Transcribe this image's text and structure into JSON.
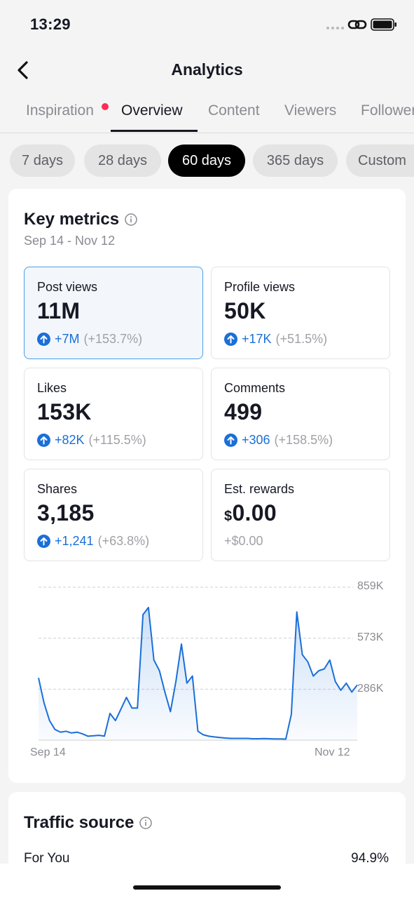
{
  "status_bar": {
    "time": "13:29",
    "icons": [
      "signal-dots-icon",
      "link-icon",
      "battery-icon"
    ]
  },
  "header": {
    "title": "Analytics",
    "back_icon": "chevron-left-icon"
  },
  "tabs": [
    {
      "label": "Inspiration",
      "has_notification_dot": true
    },
    {
      "label": "Overview",
      "active": true
    },
    {
      "label": "Content"
    },
    {
      "label": "Viewers"
    },
    {
      "label": "Followers"
    }
  ],
  "ranges": [
    {
      "label": "7 days"
    },
    {
      "label": "28 days"
    },
    {
      "label": "60 days",
      "active": true
    },
    {
      "label": "365 days"
    },
    {
      "label": "Custom"
    }
  ],
  "key_metrics": {
    "title": "Key metrics",
    "date_range": "Sep 14 - Nov 12",
    "metrics": [
      {
        "label": "Post views",
        "value": "11M",
        "change": "+7M",
        "change_pct": "(+153.7%)",
        "selected": true
      },
      {
        "label": "Profile views",
        "value": "50K",
        "change": "+17K",
        "change_pct": "(+51.5%)"
      },
      {
        "label": "Likes",
        "value": "153K",
        "change": "+82K",
        "change_pct": "(+115.5%)"
      },
      {
        "label": "Comments",
        "value": "499",
        "change": "+306",
        "change_pct": "(+158.5%)"
      },
      {
        "label": "Shares",
        "value": "3,185",
        "change": "+1,241",
        "change_pct": "(+63.8%)"
      },
      {
        "label": "Est. rewards",
        "currency": "$",
        "value": "0.00",
        "change": "+$0.00"
      }
    ]
  },
  "chart_data": {
    "type": "area",
    "series_color": "#1a6fd8",
    "y_ticks": [
      "859K",
      "573K",
      "286K"
    ],
    "y_tick_values": [
      859000,
      573000,
      286000
    ],
    "ylim": [
      0,
      859000
    ],
    "x_tick_labels": [
      "Sep 14",
      "Nov 12"
    ],
    "x_start": "Sep 14",
    "x_end": "Nov 12",
    "grid": true,
    "values": [
      350000,
      210000,
      110000,
      60000,
      45000,
      50000,
      40000,
      45000,
      35000,
      22000,
      25000,
      27000,
      23000,
      150000,
      110000,
      175000,
      240000,
      180000,
      180000,
      705000,
      745000,
      450000,
      390000,
      270000,
      160000,
      330000,
      540000,
      320000,
      360000,
      50000,
      30000,
      22000,
      18000,
      15000,
      12000,
      10000,
      10000,
      10000,
      10000,
      8000,
      8000,
      9000,
      8000,
      7000,
      7000,
      6000,
      145000,
      720000,
      480000,
      440000,
      360000,
      390000,
      400000,
      450000,
      330000,
      280000,
      320000,
      270000,
      310000
    ]
  },
  "traffic_source": {
    "title": "Traffic source",
    "rows": [
      {
        "label": "For You",
        "value": "94.9%"
      }
    ]
  }
}
